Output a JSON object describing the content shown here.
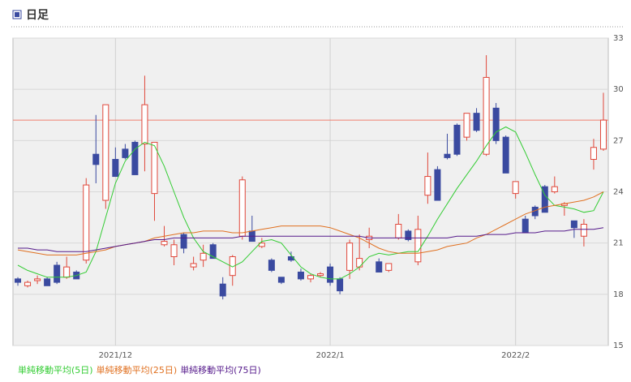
{
  "chart_data": {
    "type": "candlestick",
    "title": "日足",
    "categories": [
      null,
      null,
      null,
      null,
      null,
      null,
      null,
      null,
      null,
      null,
      "2021/12",
      null,
      null,
      null,
      null,
      null,
      null,
      null,
      null,
      null,
      null,
      null,
      null,
      null,
      null,
      null,
      null,
      null,
      null,
      null,
      null,
      null,
      "2022/1",
      null,
      null,
      null,
      null,
      null,
      null,
      null,
      null,
      null,
      null,
      null,
      null,
      null,
      null,
      null,
      null,
      null,
      null,
      "2022/2",
      null,
      null,
      null,
      null,
      null,
      null,
      null,
      null,
      null
    ],
    "open": [
      18.9,
      18.5,
      18.8,
      18.9,
      19.7,
      19.0,
      19.3,
      20.0,
      26.2,
      23.5,
      25.9,
      26.5,
      26.9,
      26.8,
      23.9,
      20.9,
      20.2,
      21.5,
      19.6,
      20.0,
      20.9,
      18.6,
      19.1,
      21.4,
      21.7,
      20.8,
      20.0,
      19.0,
      20.2,
      19.3,
      18.9,
      19.1,
      19.6,
      18.9,
      19.4,
      19.6,
      21.2,
      19.9,
      19.4,
      21.3,
      21.7,
      19.9,
      23.8,
      25.3,
      26.2,
      27.9,
      27.2,
      28.6,
      26.2,
      28.9,
      27.2,
      23.9,
      22.4,
      23.1,
      24.3,
      24.0,
      23.2,
      22.3,
      21.4,
      25.9,
      26.5
    ],
    "high": [
      19.0,
      18.8,
      19.1,
      19.0,
      19.9,
      20.2,
      19.4,
      24.8,
      28.5,
      29.1,
      26.6,
      26.8,
      27.0,
      30.8,
      26.9,
      22.0,
      21.2,
      21.6,
      20.2,
      20.9,
      21.0,
      19.0,
      20.3,
      24.9,
      22.6,
      21.3,
      20.1,
      19.0,
      20.5,
      19.5,
      19.2,
      19.3,
      19.8,
      19.0,
      21.2,
      21.5,
      21.9,
      20.1,
      19.8,
      22.7,
      21.8,
      22.6,
      26.3,
      25.5,
      27.4,
      28.0,
      28.6,
      28.9,
      32.0,
      29.2,
      27.3,
      24.6,
      22.6,
      23.2,
      24.4,
      24.9,
      23.4,
      22.3,
      22.4,
      27.1,
      29.8
    ],
    "low": [
      18.5,
      18.4,
      18.6,
      18.5,
      18.6,
      18.9,
      18.9,
      19.8,
      24.5,
      23.0,
      24.9,
      25.9,
      25.0,
      25.2,
      22.3,
      20.8,
      19.7,
      20.4,
      19.4,
      19.6,
      20.1,
      17.7,
      18.5,
      21.2,
      21.1,
      20.7,
      19.3,
      18.6,
      19.9,
      18.8,
      18.7,
      19.0,
      18.5,
      18.0,
      18.9,
      19.4,
      20.7,
      19.3,
      19.3,
      21.2,
      21.1,
      19.7,
      23.3,
      23.5,
      25.9,
      26.1,
      27.0,
      27.5,
      26.1,
      26.8,
      25.1,
      23.6,
      21.6,
      22.4,
      22.8,
      23.9,
      22.6,
      21.3,
      20.8,
      25.3,
      26.4
    ],
    "close": [
      18.7,
      18.7,
      18.9,
      18.5,
      18.7,
      19.6,
      18.9,
      24.4,
      25.6,
      29.1,
      24.9,
      26.0,
      25.0,
      29.1,
      26.9,
      21.1,
      20.9,
      20.7,
      19.8,
      20.4,
      20.1,
      17.9,
      20.2,
      24.7,
      21.1,
      21.0,
      19.4,
      18.7,
      20.0,
      18.9,
      19.1,
      19.2,
      18.7,
      18.2,
      21.0,
      20.1,
      21.4,
      19.3,
      19.8,
      22.1,
      21.2,
      21.8,
      24.9,
      23.5,
      26.0,
      26.2,
      28.6,
      27.6,
      30.7,
      27.0,
      25.1,
      24.6,
      21.6,
      22.6,
      22.8,
      24.3,
      23.3,
      21.9,
      22.1,
      26.6,
      28.2
    ],
    "up_color": "#e0473a",
    "down_color": "#3a4aa0",
    "series": [
      {
        "name": "単純移動平均(5日)",
        "color": "#33cc33",
        "values": [
          19.7,
          19.4,
          19.2,
          19.0,
          19.0,
          19.0,
          19.1,
          19.3,
          20.5,
          22.5,
          24.5,
          25.8,
          26.5,
          26.9,
          26.7,
          25.5,
          24.0,
          22.5,
          21.3,
          20.5,
          20.2,
          19.9,
          19.6,
          19.9,
          20.5,
          21.1,
          21.2,
          21.0,
          20.3,
          19.6,
          19.2,
          19.0,
          18.9,
          18.9,
          19.2,
          19.6,
          20.2,
          20.4,
          20.3,
          20.4,
          20.5,
          20.5,
          21.4,
          22.4,
          23.3,
          24.2,
          25.0,
          25.8,
          26.7,
          27.5,
          27.8,
          27.5,
          26.3,
          25.0,
          23.8,
          23.2,
          23.1,
          23.0,
          22.8,
          22.9,
          24.0
        ]
      },
      {
        "name": "単純移動平均(25日)",
        "color": "#e07020",
        "values": [
          20.6,
          20.5,
          20.4,
          20.3,
          20.3,
          20.3,
          20.3,
          20.4,
          20.5,
          20.6,
          20.8,
          20.9,
          21.0,
          21.1,
          21.3,
          21.4,
          21.5,
          21.6,
          21.6,
          21.7,
          21.7,
          21.7,
          21.6,
          21.6,
          21.7,
          21.8,
          21.9,
          22.0,
          22.0,
          22.0,
          22.0,
          22.0,
          21.9,
          21.7,
          21.5,
          21.3,
          21.0,
          20.7,
          20.5,
          20.4,
          20.4,
          20.4,
          20.5,
          20.6,
          20.8,
          20.9,
          21.0,
          21.3,
          21.5,
          21.8,
          22.1,
          22.4,
          22.7,
          22.9,
          23.1,
          23.2,
          23.3,
          23.4,
          23.5,
          23.7,
          24.0
        ]
      },
      {
        "name": "単純移動平均(75日)",
        "color": "#551a8b",
        "values": [
          20.7,
          20.7,
          20.6,
          20.6,
          20.5,
          20.5,
          20.5,
          20.5,
          20.6,
          20.7,
          20.8,
          20.9,
          21.0,
          21.1,
          21.2,
          21.2,
          21.3,
          21.3,
          21.3,
          21.3,
          21.3,
          21.3,
          21.3,
          21.4,
          21.4,
          21.4,
          21.4,
          21.4,
          21.4,
          21.4,
          21.4,
          21.4,
          21.4,
          21.4,
          21.4,
          21.4,
          21.3,
          21.3,
          21.3,
          21.3,
          21.3,
          21.3,
          21.3,
          21.3,
          21.3,
          21.4,
          21.4,
          21.4,
          21.5,
          21.5,
          21.5,
          21.6,
          21.6,
          21.6,
          21.7,
          21.7,
          21.7,
          21.8,
          21.8,
          21.8,
          21.9
        ]
      }
    ],
    "hline": {
      "value": 28.2,
      "color": "#f08070"
    },
    "ylim": [
      15,
      33
    ],
    "yticks": [
      15,
      18,
      21,
      24,
      27,
      30,
      33
    ],
    "grid": true
  }
}
